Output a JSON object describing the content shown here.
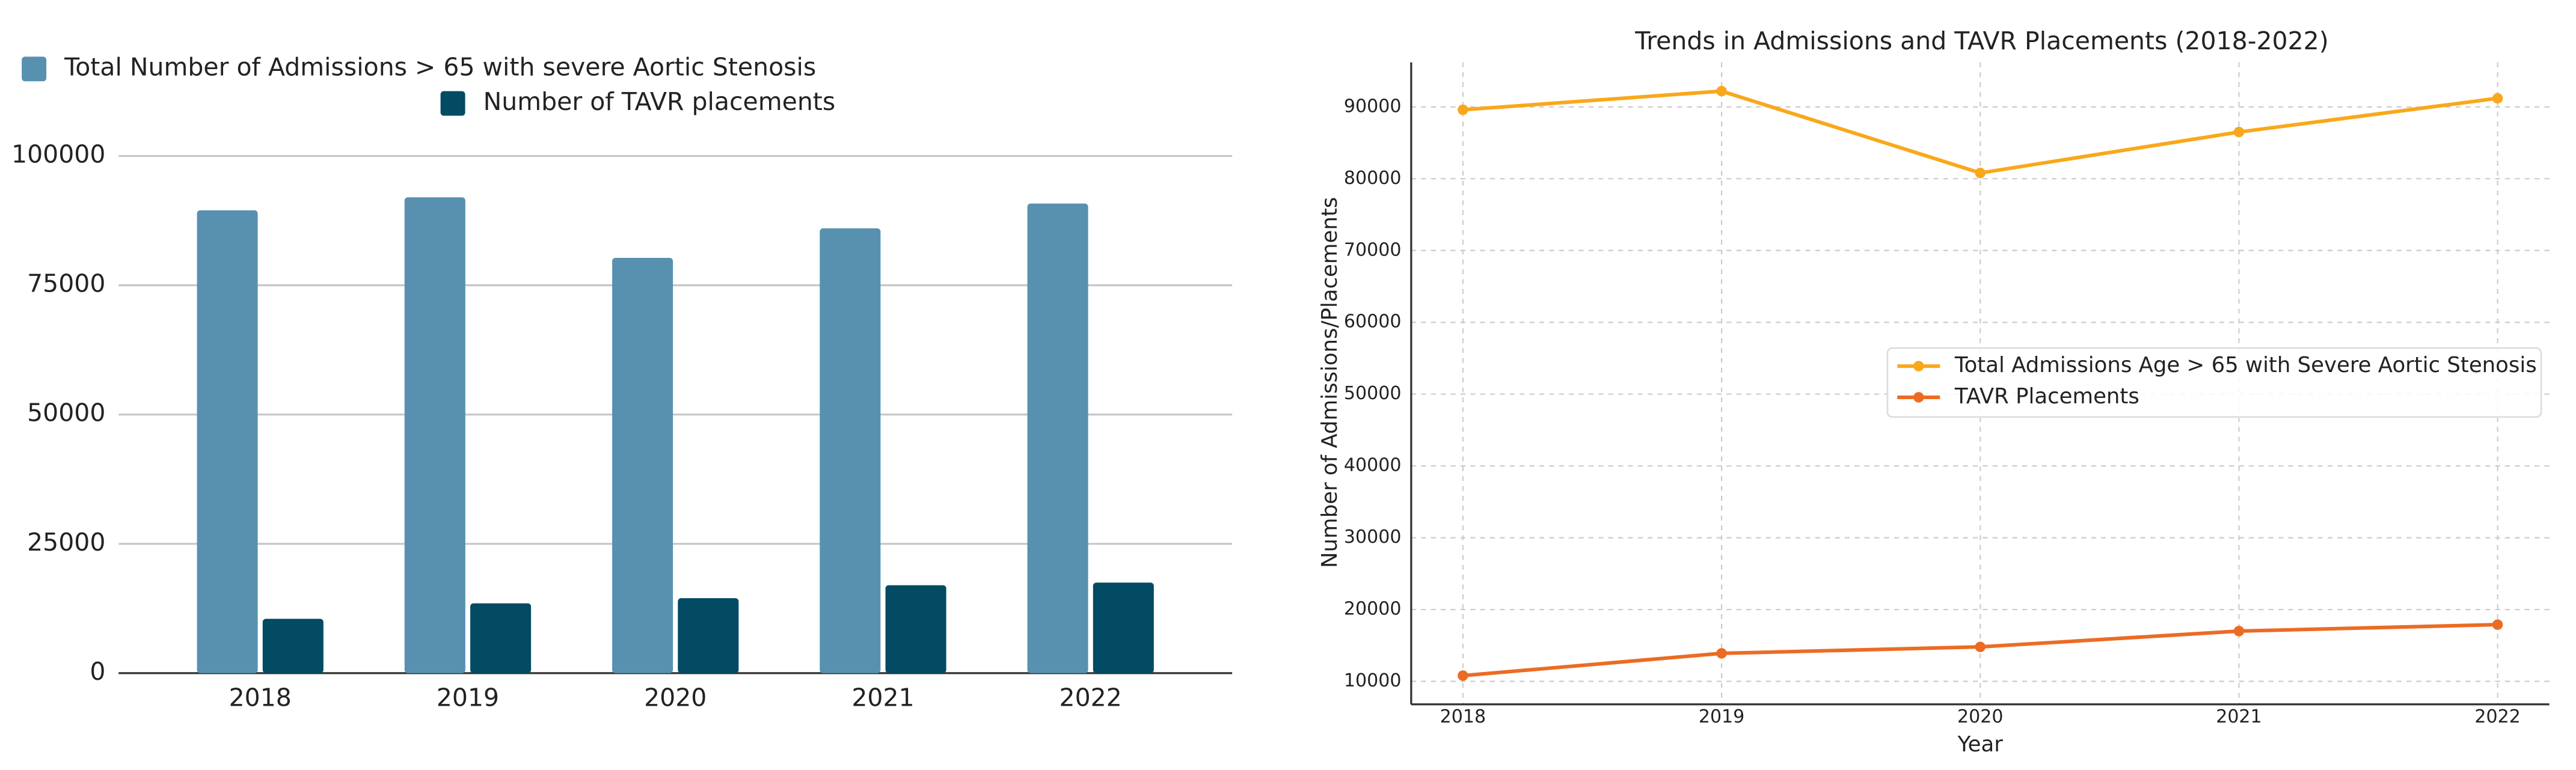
{
  "chart_data": [
    {
      "type": "bar",
      "categories": [
        "2018",
        "2019",
        "2020",
        "2021",
        "2022"
      ],
      "series": [
        {
          "name": "Total Number of Admissions > 65 with severe Aortic Stenosis",
          "color": "#5891b0",
          "values": [
            89500,
            92000,
            80300,
            86000,
            90800
          ]
        },
        {
          "name": "Number of TAVR placements",
          "color": "#034a63",
          "values": [
            10500,
            13500,
            14500,
            17000,
            17500
          ]
        }
      ],
      "ylim": [
        0,
        100000
      ],
      "yticks": [
        0,
        25000,
        50000,
        75000,
        100000
      ],
      "grid": true
    },
    {
      "type": "line",
      "title": "Trends in Admissions and TAVR Placements (2018-2022)",
      "x_label": "Year",
      "y_label": "Number of Admissions/Placements",
      "x": [
        2018,
        2019,
        2020,
        2021,
        2022
      ],
      "series": [
        {
          "name": "Total Admissions Age > 65 with Severe Aortic Stenosis",
          "color": "#f9a81b",
          "values": [
            89600,
            92200,
            80800,
            86500,
            91200
          ]
        },
        {
          "name": "TAVR Placements",
          "color": "#ec6b23",
          "values": [
            10800,
            13900,
            14800,
            17000,
            17900
          ]
        }
      ],
      "xlim": [
        2017.8,
        2022.2
      ],
      "xticks": [
        2018,
        2019,
        2020,
        2021,
        2022
      ],
      "ylim": [
        6800,
        96200
      ],
      "yticks": [
        10000,
        20000,
        30000,
        40000,
        50000,
        60000,
        70000,
        80000,
        90000
      ],
      "grid": true
    }
  ]
}
